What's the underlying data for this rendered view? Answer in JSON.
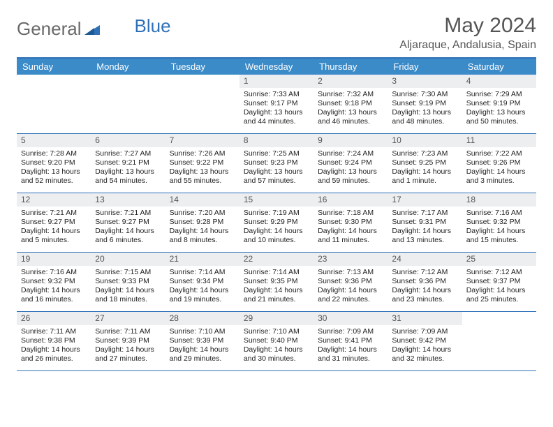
{
  "logo": {
    "text1": "General",
    "text2": "Blue"
  },
  "title": "May 2024",
  "location": "Aljaraque, Andalusia, Spain",
  "colors": {
    "header_bg": "#3b8bc9",
    "border": "#2f71b8",
    "daynum_bg": "#eceef0",
    "text_gray": "#555555"
  },
  "day_names": [
    "Sunday",
    "Monday",
    "Tuesday",
    "Wednesday",
    "Thursday",
    "Friday",
    "Saturday"
  ],
  "weeks": [
    [
      {
        "n": "",
        "sr": "",
        "ss": "",
        "dl": ""
      },
      {
        "n": "",
        "sr": "",
        "ss": "",
        "dl": ""
      },
      {
        "n": "",
        "sr": "",
        "ss": "",
        "dl": ""
      },
      {
        "n": "1",
        "sr": "Sunrise: 7:33 AM",
        "ss": "Sunset: 9:17 PM",
        "dl": "Daylight: 13 hours and 44 minutes."
      },
      {
        "n": "2",
        "sr": "Sunrise: 7:32 AM",
        "ss": "Sunset: 9:18 PM",
        "dl": "Daylight: 13 hours and 46 minutes."
      },
      {
        "n": "3",
        "sr": "Sunrise: 7:30 AM",
        "ss": "Sunset: 9:19 PM",
        "dl": "Daylight: 13 hours and 48 minutes."
      },
      {
        "n": "4",
        "sr": "Sunrise: 7:29 AM",
        "ss": "Sunset: 9:19 PM",
        "dl": "Daylight: 13 hours and 50 minutes."
      }
    ],
    [
      {
        "n": "5",
        "sr": "Sunrise: 7:28 AM",
        "ss": "Sunset: 9:20 PM",
        "dl": "Daylight: 13 hours and 52 minutes."
      },
      {
        "n": "6",
        "sr": "Sunrise: 7:27 AM",
        "ss": "Sunset: 9:21 PM",
        "dl": "Daylight: 13 hours and 54 minutes."
      },
      {
        "n": "7",
        "sr": "Sunrise: 7:26 AM",
        "ss": "Sunset: 9:22 PM",
        "dl": "Daylight: 13 hours and 55 minutes."
      },
      {
        "n": "8",
        "sr": "Sunrise: 7:25 AM",
        "ss": "Sunset: 9:23 PM",
        "dl": "Daylight: 13 hours and 57 minutes."
      },
      {
        "n": "9",
        "sr": "Sunrise: 7:24 AM",
        "ss": "Sunset: 9:24 PM",
        "dl": "Daylight: 13 hours and 59 minutes."
      },
      {
        "n": "10",
        "sr": "Sunrise: 7:23 AM",
        "ss": "Sunset: 9:25 PM",
        "dl": "Daylight: 14 hours and 1 minute."
      },
      {
        "n": "11",
        "sr": "Sunrise: 7:22 AM",
        "ss": "Sunset: 9:26 PM",
        "dl": "Daylight: 14 hours and 3 minutes."
      }
    ],
    [
      {
        "n": "12",
        "sr": "Sunrise: 7:21 AM",
        "ss": "Sunset: 9:27 PM",
        "dl": "Daylight: 14 hours and 5 minutes."
      },
      {
        "n": "13",
        "sr": "Sunrise: 7:21 AM",
        "ss": "Sunset: 9:27 PM",
        "dl": "Daylight: 14 hours and 6 minutes."
      },
      {
        "n": "14",
        "sr": "Sunrise: 7:20 AM",
        "ss": "Sunset: 9:28 PM",
        "dl": "Daylight: 14 hours and 8 minutes."
      },
      {
        "n": "15",
        "sr": "Sunrise: 7:19 AM",
        "ss": "Sunset: 9:29 PM",
        "dl": "Daylight: 14 hours and 10 minutes."
      },
      {
        "n": "16",
        "sr": "Sunrise: 7:18 AM",
        "ss": "Sunset: 9:30 PM",
        "dl": "Daylight: 14 hours and 11 minutes."
      },
      {
        "n": "17",
        "sr": "Sunrise: 7:17 AM",
        "ss": "Sunset: 9:31 PM",
        "dl": "Daylight: 14 hours and 13 minutes."
      },
      {
        "n": "18",
        "sr": "Sunrise: 7:16 AM",
        "ss": "Sunset: 9:32 PM",
        "dl": "Daylight: 14 hours and 15 minutes."
      }
    ],
    [
      {
        "n": "19",
        "sr": "Sunrise: 7:16 AM",
        "ss": "Sunset: 9:32 PM",
        "dl": "Daylight: 14 hours and 16 minutes."
      },
      {
        "n": "20",
        "sr": "Sunrise: 7:15 AM",
        "ss": "Sunset: 9:33 PM",
        "dl": "Daylight: 14 hours and 18 minutes."
      },
      {
        "n": "21",
        "sr": "Sunrise: 7:14 AM",
        "ss": "Sunset: 9:34 PM",
        "dl": "Daylight: 14 hours and 19 minutes."
      },
      {
        "n": "22",
        "sr": "Sunrise: 7:14 AM",
        "ss": "Sunset: 9:35 PM",
        "dl": "Daylight: 14 hours and 21 minutes."
      },
      {
        "n": "23",
        "sr": "Sunrise: 7:13 AM",
        "ss": "Sunset: 9:36 PM",
        "dl": "Daylight: 14 hours and 22 minutes."
      },
      {
        "n": "24",
        "sr": "Sunrise: 7:12 AM",
        "ss": "Sunset: 9:36 PM",
        "dl": "Daylight: 14 hours and 23 minutes."
      },
      {
        "n": "25",
        "sr": "Sunrise: 7:12 AM",
        "ss": "Sunset: 9:37 PM",
        "dl": "Daylight: 14 hours and 25 minutes."
      }
    ],
    [
      {
        "n": "26",
        "sr": "Sunrise: 7:11 AM",
        "ss": "Sunset: 9:38 PM",
        "dl": "Daylight: 14 hours and 26 minutes."
      },
      {
        "n": "27",
        "sr": "Sunrise: 7:11 AM",
        "ss": "Sunset: 9:39 PM",
        "dl": "Daylight: 14 hours and 27 minutes."
      },
      {
        "n": "28",
        "sr": "Sunrise: 7:10 AM",
        "ss": "Sunset: 9:39 PM",
        "dl": "Daylight: 14 hours and 29 minutes."
      },
      {
        "n": "29",
        "sr": "Sunrise: 7:10 AM",
        "ss": "Sunset: 9:40 PM",
        "dl": "Daylight: 14 hours and 30 minutes."
      },
      {
        "n": "30",
        "sr": "Sunrise: 7:09 AM",
        "ss": "Sunset: 9:41 PM",
        "dl": "Daylight: 14 hours and 31 minutes."
      },
      {
        "n": "31",
        "sr": "Sunrise: 7:09 AM",
        "ss": "Sunset: 9:42 PM",
        "dl": "Daylight: 14 hours and 32 minutes."
      },
      {
        "n": "",
        "sr": "",
        "ss": "",
        "dl": ""
      }
    ]
  ]
}
